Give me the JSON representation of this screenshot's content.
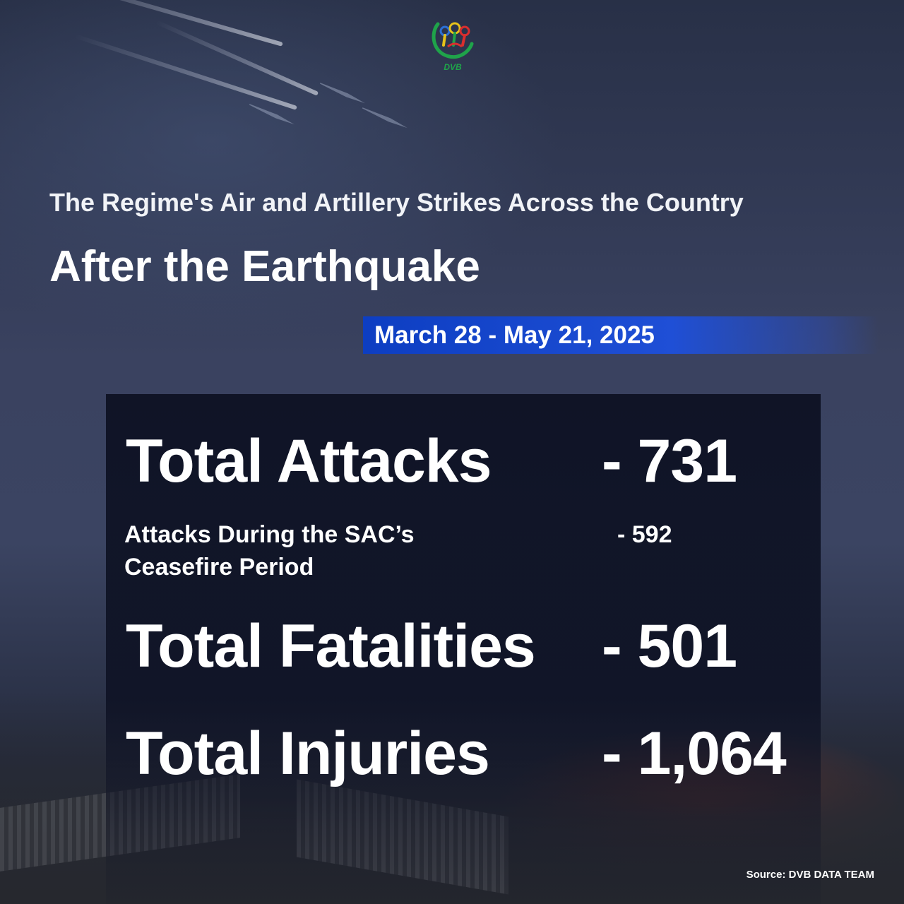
{
  "brand": {
    "logo_text": "DVB"
  },
  "header": {
    "subtitle": "The Regime's Air and Artillery Strikes Across the Country",
    "title": "After the Earthquake",
    "date_range": "March 28 - May 21, 2025"
  },
  "stats": {
    "total_attacks": {
      "label": "Total Attacks",
      "value": "- 731"
    },
    "ceasefire_attacks": {
      "label_line1": "Attacks During the SAC’s",
      "label_line2": "Ceasefire Period",
      "value": "- 592"
    },
    "total_fatalities": {
      "label": "Total Fatalities",
      "value": "- 501"
    },
    "total_injuries": {
      "label": "Total Injuries",
      "value": "- 1,064"
    }
  },
  "footer": {
    "source": "Source: DVB DATA TEAM"
  },
  "colors": {
    "date_bar": "#0d3ec2",
    "panel": "#0e1224",
    "text": "#ffffff",
    "logo_green": "#1fa34a"
  }
}
